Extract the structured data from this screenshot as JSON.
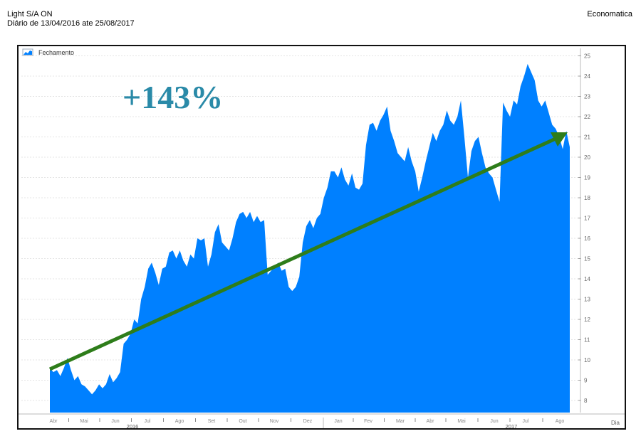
{
  "header": {
    "title": "Light S/A ON",
    "subtitle": "Diário de 13/04/2016 ate 25/08/2017",
    "brand": "Economatica"
  },
  "annotation": {
    "text": "+143%",
    "color": "#2a8aa8",
    "arrow_color": "#2e7d1a"
  },
  "chart_data": {
    "type": "area",
    "legend": [
      {
        "name": "Fechamento",
        "icon": "area-chart-icon"
      }
    ],
    "legend_placement": "top-left",
    "color": "#0080ff",
    "x_range": [
      "2016-04-13",
      "2017-08-25"
    ],
    "xlabel": "Dia",
    "x_month_labels": [
      "Abr",
      "Mai",
      "Jun",
      "Jul",
      "Ago",
      "Set",
      "Out",
      "Nov",
      "Dez",
      "Jan",
      "Fev",
      "Mar",
      "Abr",
      "Mai",
      "Jun",
      "Jul",
      "Ago"
    ],
    "x_year_labels": [
      "2016",
      "2017"
    ],
    "ylim": [
      7.5,
      25.3
    ],
    "y_ticks": [
      8,
      9,
      10,
      11,
      12,
      13,
      14,
      15,
      16,
      17,
      18,
      19,
      20,
      21,
      22,
      23,
      24,
      25
    ],
    "grid": true,
    "series": [
      {
        "name": "Fechamento",
        "values": [
          9.6,
          9.4,
          9.5,
          9.2,
          9.6,
          10.1,
          9.5,
          9.0,
          9.2,
          8.8,
          8.7,
          8.5,
          8.3,
          8.5,
          8.8,
          8.6,
          8.8,
          9.3,
          8.9,
          9.1,
          9.4,
          10.8,
          11.0,
          11.3,
          12.0,
          11.8,
          13.0,
          13.6,
          14.5,
          14.8,
          14.3,
          13.7,
          14.5,
          14.6,
          15.3,
          15.4,
          15.0,
          15.4,
          14.9,
          14.6,
          15.2,
          15.0,
          16.0,
          15.9,
          16.0,
          14.6,
          15.2,
          16.3,
          16.7,
          15.8,
          15.6,
          15.4,
          16.0,
          16.8,
          17.2,
          17.3,
          17.0,
          17.3,
          16.8,
          17.1,
          16.8,
          16.9,
          14.2,
          14.4,
          14.6,
          14.8,
          14.4,
          14.5,
          13.6,
          13.4,
          13.6,
          14.1,
          15.8,
          16.6,
          16.9,
          16.5,
          17.0,
          17.2,
          18.0,
          18.5,
          19.3,
          19.3,
          19.0,
          19.5,
          18.9,
          18.6,
          19.2,
          18.5,
          18.4,
          18.7,
          20.6,
          21.6,
          21.7,
          21.3,
          21.8,
          22.1,
          22.5,
          21.3,
          20.8,
          20.2,
          20.0,
          19.8,
          20.5,
          19.8,
          19.3,
          18.3,
          19.0,
          19.8,
          20.5,
          21.2,
          20.8,
          21.3,
          21.6,
          22.3,
          21.8,
          21.6,
          22.0,
          22.8,
          21.0,
          19.0,
          20.3,
          20.8,
          21.0,
          20.2,
          19.5,
          19.2,
          19.0,
          18.4,
          17.8,
          22.7,
          22.3,
          22.0,
          22.8,
          22.6,
          23.5,
          24.0,
          24.6,
          24.2,
          23.8,
          22.8,
          22.5,
          22.8,
          22.2,
          21.6,
          21.4,
          21.0,
          20.4,
          21.3,
          20.5
        ]
      }
    ]
  }
}
